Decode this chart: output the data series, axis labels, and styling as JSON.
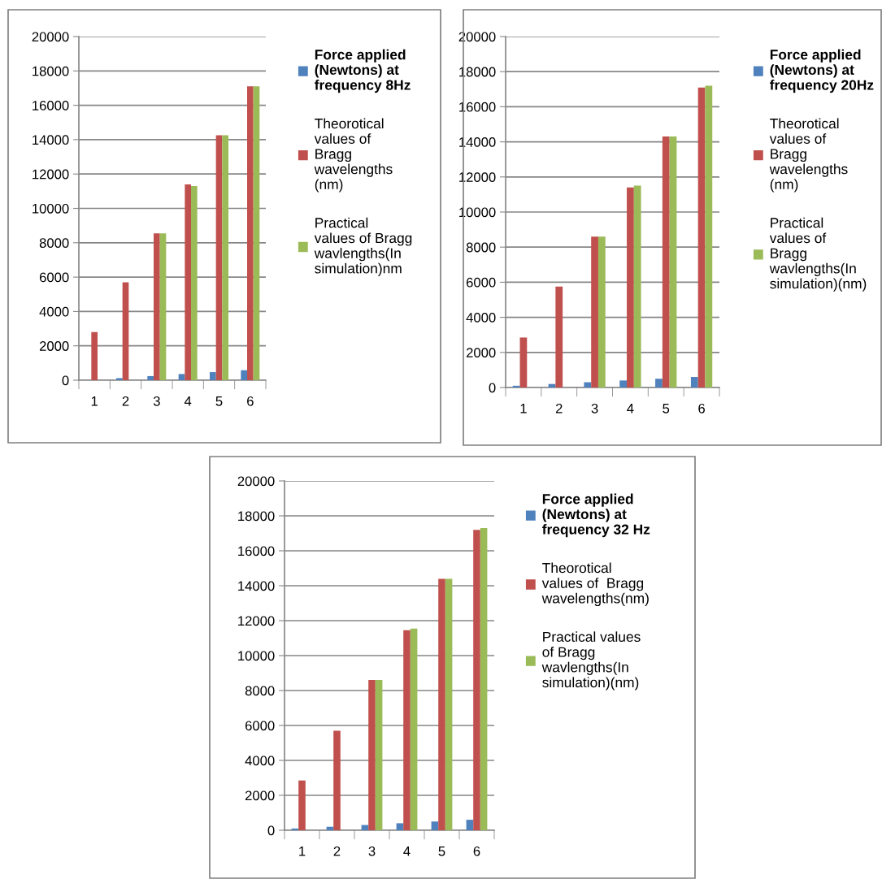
{
  "chart_data": [
    {
      "type": "bar",
      "categories": [
        "1",
        "2",
        "3",
        "4",
        "5",
        "6"
      ],
      "ylim": [
        0,
        20000
      ],
      "yticks": [
        0,
        2000,
        4000,
        6000,
        8000,
        10000,
        12000,
        14000,
        16000,
        18000,
        20000
      ],
      "grid": "y",
      "legend": "right",
      "series": [
        {
          "name": "Force applied (Newtons) at frequency 8Hz",
          "color": "#4f81bd",
          "values": [
            0,
            120,
            240,
            360,
            470,
            580
          ]
        },
        {
          "name": "Theorotical values of  Bragg wavelengths (nm)",
          "color": "#c0504d",
          "values": [
            2800,
            5700,
            8550,
            11400,
            14250,
            17100
          ]
        },
        {
          "name": "Practical values of Bragg wavlengths(In simulation)nm",
          "color": "#9bbb59",
          "values": [
            null,
            null,
            8550,
            11300,
            14250,
            17100
          ]
        }
      ]
    },
    {
      "type": "bar",
      "categories": [
        "1",
        "2",
        "3",
        "4",
        "5",
        "6"
      ],
      "ylim": [
        0,
        20000
      ],
      "yticks": [
        0,
        2000,
        4000,
        6000,
        8000,
        10000,
        12000,
        14000,
        16000,
        18000,
        20000
      ],
      "grid": "y",
      "legend": "right",
      "series": [
        {
          "name": "Force applied (Newtons) at frequency 20Hz",
          "color": "#4f81bd",
          "values": [
            100,
            200,
            300,
            400,
            500,
            600
          ]
        },
        {
          "name": "Theorotical values of  Bragg wavelengths (nm)",
          "color": "#c0504d",
          "values": [
            2850,
            5750,
            8600,
            11400,
            14300,
            17100
          ]
        },
        {
          "name": "Practical values of Bragg wavlengths(In simulation)(nm)",
          "color": "#9bbb59",
          "values": [
            null,
            null,
            8600,
            11500,
            14300,
            17200
          ]
        }
      ]
    },
    {
      "type": "bar",
      "categories": [
        "1",
        "2",
        "3",
        "4",
        "5",
        "6"
      ],
      "ylim": [
        0,
        20000
      ],
      "yticks": [
        0,
        2000,
        4000,
        6000,
        8000,
        10000,
        12000,
        14000,
        16000,
        18000,
        20000
      ],
      "grid": "y",
      "legend": "right",
      "series": [
        {
          "name": "Force applied (Newtons) at frequency 32 Hz",
          "color": "#4f81bd",
          "values": [
            100,
            200,
            300,
            400,
            500,
            600
          ]
        },
        {
          "name": "Theorotical values of  Bragg wavelengths(nm)",
          "color": "#c0504d",
          "values": [
            2850,
            5700,
            8600,
            11450,
            14400,
            17200
          ]
        },
        {
          "name": "Practical values of Bragg wavlengths(In simulation)(nm)",
          "color": "#9bbb59",
          "values": [
            null,
            null,
            8600,
            11550,
            14400,
            17300
          ]
        }
      ]
    }
  ]
}
